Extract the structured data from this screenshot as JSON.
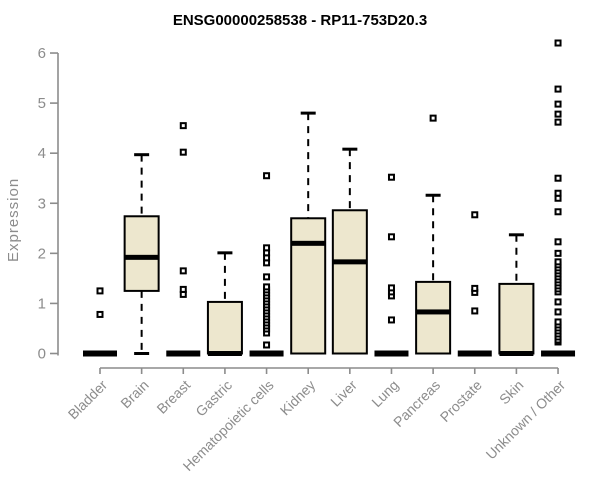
{
  "chart_data": {
    "type": "boxplot",
    "title": "ENSG00000258538 - RP11-753D20.3",
    "ylabel": "Expression",
    "xlabel": "",
    "ylim": [
      0,
      6
    ],
    "yticks": [
      0,
      1,
      2,
      3,
      4,
      5,
      6
    ],
    "legend": "none",
    "grid": false,
    "categories": [
      "Bladder",
      "Brain",
      "Breast",
      "Gastric",
      "Hematopoietic cells",
      "Kidney",
      "Liver",
      "Lung",
      "Pancreas",
      "Prostate",
      "Skin",
      "Unknown / Other"
    ],
    "series": [
      {
        "label": "Bladder",
        "min": 0,
        "q1": 0,
        "median": 0,
        "q3": 0,
        "max": 0,
        "outliers": [
          0.78,
          1.25
        ]
      },
      {
        "label": "Brain",
        "min": 0,
        "q1": 1.25,
        "median": 1.92,
        "q3": 2.74,
        "max": 3.97,
        "outliers": []
      },
      {
        "label": "Breast",
        "min": 0,
        "q1": 0,
        "median": 0,
        "q3": 0,
        "max": 0,
        "outliers": [
          1.18,
          1.28,
          1.65,
          4.02,
          4.55
        ]
      },
      {
        "label": "Gastric",
        "min": 0,
        "q1": 0,
        "median": 0,
        "q3": 1.03,
        "max": 2.01,
        "outliers": []
      },
      {
        "label": "Hematopoietic cells",
        "min": 0,
        "q1": 0,
        "median": 0,
        "q3": 0,
        "max": 0,
        "outliers": [
          0.17,
          0.41,
          0.49,
          0.55,
          0.61,
          0.67,
          0.73,
          0.79,
          0.85,
          0.91,
          0.97,
          1.03,
          1.09,
          1.15,
          1.21,
          1.27,
          1.33,
          1.53,
          1.81,
          1.91,
          2.01,
          2.11,
          3.55
        ]
      },
      {
        "label": "Kidney",
        "min": 0,
        "q1": 0,
        "median": 2.2,
        "q3": 2.7,
        "max": 4.8,
        "outliers": []
      },
      {
        "label": "Liver",
        "min": 0,
        "q1": 0,
        "median": 1.83,
        "q3": 2.86,
        "max": 4.08,
        "outliers": []
      },
      {
        "label": "Lung",
        "min": 0,
        "q1": 0,
        "median": 0,
        "q3": 0,
        "max": 0,
        "outliers": [
          0.67,
          1.15,
          1.23,
          1.31,
          2.33,
          3.52
        ]
      },
      {
        "label": "Pancreas",
        "min": 0,
        "q1": 0,
        "median": 0.83,
        "q3": 1.43,
        "max": 3.16,
        "outliers": [
          4.7
        ]
      },
      {
        "label": "Prostate",
        "min": 0,
        "q1": 0,
        "median": 0,
        "q3": 0,
        "max": 0,
        "outliers": [
          0.85,
          1.22,
          1.3,
          2.77
        ]
      },
      {
        "label": "Skin",
        "min": 0,
        "q1": 0,
        "median": 0,
        "q3": 1.39,
        "max": 2.37,
        "outliers": []
      },
      {
        "label": "Unknown / Other",
        "min": 0,
        "q1": 0,
        "median": 0,
        "q3": 0,
        "max": 0,
        "outliers": [
          0.23,
          0.27,
          0.33,
          0.39,
          0.45,
          0.51,
          0.57,
          0.63,
          0.83,
          1.03,
          1.23,
          1.29,
          1.35,
          1.41,
          1.47,
          1.53,
          1.59,
          1.65,
          1.71,
          1.77,
          1.83,
          2.0,
          2.23,
          2.83,
          3.1,
          3.2,
          3.5,
          4.62,
          4.78,
          4.98,
          5.28,
          6.2
        ]
      }
    ],
    "colors": {
      "box_fill": "#EDE7CE",
      "box_stroke": "#000000",
      "median": "#000000",
      "whisker": "#000000",
      "outlier_stroke": "#000000",
      "outlier_fill": "#ffffff",
      "axis": "#8C8C8C",
      "title": "#000000",
      "background": "#ffffff"
    }
  }
}
